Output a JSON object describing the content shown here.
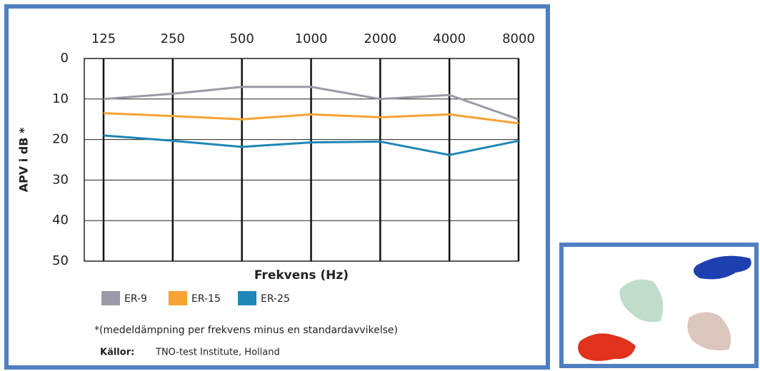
{
  "chart_data": {
    "type": "line",
    "categories": [
      "125",
      "250",
      "500",
      "1000",
      "2000",
      "4000",
      "8000"
    ],
    "series": [
      {
        "name": "ER-9",
        "color": "#9a9aa8",
        "values": [
          10,
          8.7,
          7,
          7,
          10,
          9,
          15
        ]
      },
      {
        "name": "ER-15",
        "color": "#f7a234",
        "values": [
          13.5,
          14.2,
          15,
          13.8,
          14.5,
          13.8,
          16
        ]
      },
      {
        "name": "ER-25",
        "color": "#1f86b8",
        "values": [
          19,
          20.3,
          21.8,
          20.7,
          20.5,
          23.8,
          20.3
        ]
      }
    ],
    "ylim": [
      0,
      50
    ],
    "yticks": [
      0,
      10,
      20,
      30,
      40,
      50
    ],
    "y_inverted": true,
    "grid": true,
    "y_label": "APV i dB *",
    "x_label": "Frekvens (Hz)",
    "footnote": "*(medeldämpning per frekvens minus en standardavvikelse)",
    "source_label": "Källor:",
    "source": "TNO-test Institute, Holland"
  }
}
